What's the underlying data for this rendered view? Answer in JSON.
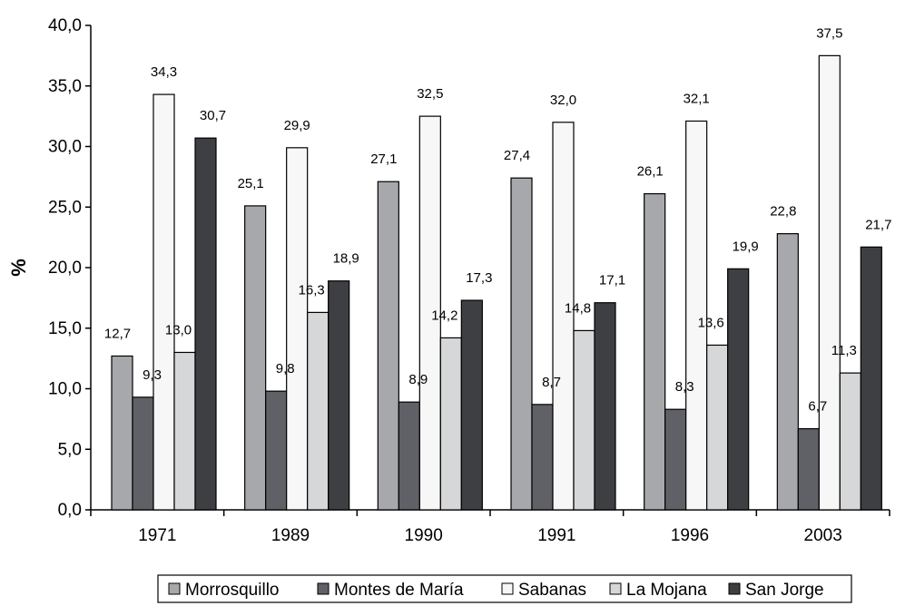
{
  "chart_data": {
    "type": "bar",
    "title": "",
    "xlabel": "",
    "ylabel": "%",
    "ylim": [
      0,
      40
    ],
    "y_ticks": [
      "0,0",
      "5,0",
      "10,0",
      "15,0",
      "20,0",
      "25,0",
      "30,0",
      "35,0",
      "40,0"
    ],
    "y_tick_values": [
      0,
      5,
      10,
      15,
      20,
      25,
      30,
      35,
      40
    ],
    "grid": false,
    "legend_position": "bottom",
    "categories": [
      "1971",
      "1989",
      "1990",
      "1991",
      "1996",
      "2003"
    ],
    "series": [
      {
        "name": "Morrosquillo",
        "color": "#a7a8ab",
        "values": [
          12.7,
          25.1,
          27.1,
          27.4,
          26.1,
          22.8
        ],
        "labels": [
          "12,7",
          "25,1",
          "27,1",
          "27,4",
          "26,1",
          "22,8"
        ]
      },
      {
        "name": "Montes de María",
        "color": "#5f6166",
        "values": [
          9.3,
          9.8,
          8.9,
          8.7,
          8.3,
          6.7
        ],
        "labels": [
          "9,3",
          "9,8",
          "8,9",
          "8,7",
          "8,3",
          "6,7"
        ]
      },
      {
        "name": "Sabanas",
        "color": "#f7f7f7",
        "values": [
          34.3,
          29.9,
          32.5,
          32.0,
          32.1,
          37.5
        ],
        "labels": [
          "34,3",
          "29,9",
          "32,5",
          "32,0",
          "32,1",
          "37,5"
        ]
      },
      {
        "name": "La Mojana",
        "color": "#d6d7d9",
        "values": [
          13.0,
          16.3,
          14.2,
          14.8,
          13.6,
          11.3
        ],
        "labels": [
          "13,0",
          "16,3",
          "14,2",
          "14,8",
          "13,6",
          "11,3"
        ]
      },
      {
        "name": "San Jorge",
        "color": "#3e3f43",
        "values": [
          30.7,
          18.9,
          17.3,
          17.1,
          19.9,
          21.7
        ],
        "labels": [
          "30,7",
          "18,9",
          "17,3",
          "17,1",
          "19,9",
          "21,7"
        ]
      }
    ]
  }
}
